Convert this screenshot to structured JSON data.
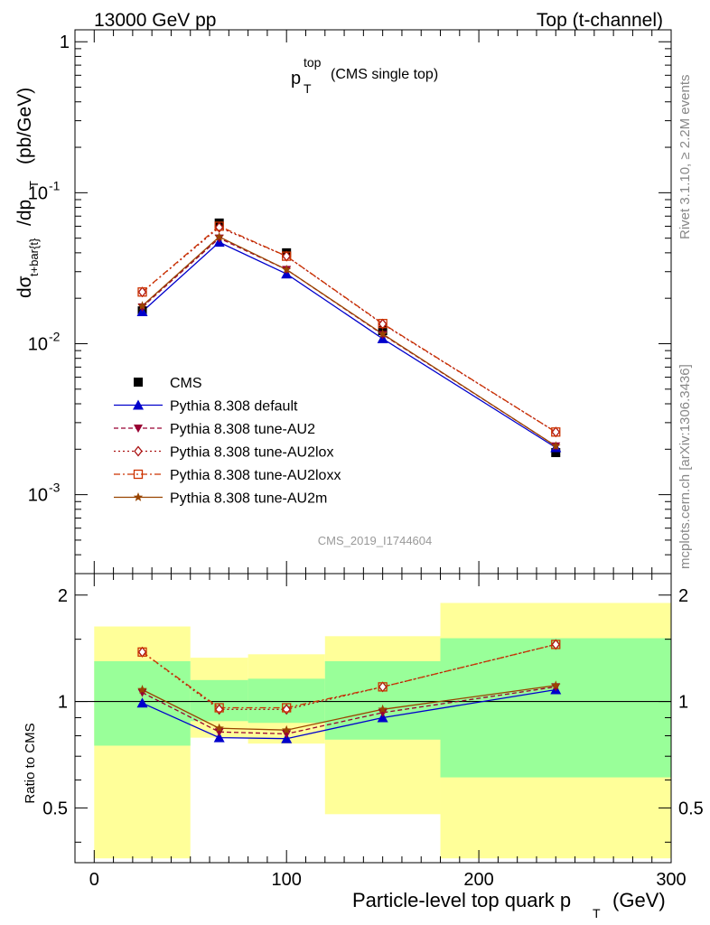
{
  "header": {
    "left": "13000 GeV pp",
    "right": "Top (t-channel)"
  },
  "plot_title": {
    "main": "p",
    "sup": "top",
    "sub": "T",
    "rest": "(CMS single top)"
  },
  "analysis_id": "CMS_2019_I1744604",
  "side_labels": {
    "rivet": "Rivet 3.1.10, ≥ 2.2M events",
    "mcplots": "mcplots.cern.ch [arXiv:1306.3436]"
  },
  "ylabel_top": {
    "d_sigma": "dσ",
    "sub": "t+bar{t}",
    "rest": "/dp",
    "sub_T": "T",
    "unit": "(pb/GeV)"
  },
  "ylabel_ratio": "Ratio to CMS",
  "xlabel": {
    "main": "Particle-level top quark p",
    "sub": "T",
    "unit": "(GeV)"
  },
  "colors": {
    "band_yellow": "#ffff99",
    "band_green": "#99ff99",
    "data": "#000000",
    "default": "#0000cc",
    "au2": "#990033",
    "au2lox": "#aa1111",
    "au2loxx": "#cc3300",
    "au2m": "#994400"
  },
  "chart_data": [
    {
      "type": "line",
      "panel": "main",
      "log_y": true,
      "xlim": [
        -10,
        300
      ],
      "ylim": [
        0.0003,
        1.2
      ],
      "y_ticks": [
        "1",
        "10^-1",
        "10^-2",
        "10^-3"
      ],
      "x": [
        25,
        65,
        100,
        150,
        240
      ],
      "series": [
        {
          "name": "CMS",
          "values": [
            0.0165,
            0.063,
            0.04,
            0.0122,
            0.0019
          ],
          "style": "square"
        },
        {
          "name": "Pythia 8.308 default",
          "values": [
            0.0163,
            0.047,
            0.029,
            0.0108,
            0.00205
          ],
          "style": "triangle"
        },
        {
          "name": "Pythia 8.308 tune-AU2",
          "values": [
            0.0175,
            0.05,
            0.031,
            0.0115,
            0.0021
          ],
          "style": "tri-down"
        },
        {
          "name": "Pythia 8.308 tune-AU2lox",
          "values": [
            0.022,
            0.059,
            0.038,
            0.0135,
            0.0026
          ],
          "style": "diamond"
        },
        {
          "name": "Pythia 8.308 tune-AU2loxx",
          "values": [
            0.022,
            0.06,
            0.038,
            0.0136,
            0.0026
          ],
          "style": "open-square"
        },
        {
          "name": "Pythia 8.308 tune-AU2m",
          "values": [
            0.0178,
            0.051,
            0.031,
            0.0116,
            0.0021
          ],
          "style": "star"
        }
      ]
    },
    {
      "type": "line",
      "panel": "ratio",
      "xlim": [
        -10,
        300
      ],
      "ylim": [
        0.35,
        2.3
      ],
      "y_ticks": [
        0.5,
        1,
        2
      ],
      "x_ticks": [
        0,
        100,
        200,
        300
      ],
      "bins": [
        {
          "x0": 0,
          "x1": 50,
          "yellow": [
            0.36,
            1.63
          ],
          "green": [
            0.75,
            1.3
          ]
        },
        {
          "x0": 50,
          "x1": 80,
          "yellow": [
            0.79,
            1.33
          ],
          "green": [
            0.88,
            1.15
          ]
        },
        {
          "x0": 80,
          "x1": 120,
          "yellow": [
            0.76,
            1.36
          ],
          "green": [
            0.87,
            1.16
          ]
        },
        {
          "x0": 120,
          "x1": 180,
          "yellow": [
            0.48,
            1.53
          ],
          "green": [
            0.78,
            1.3
          ]
        },
        {
          "x0": 180,
          "x1": 300,
          "yellow": [
            0.36,
            1.9
          ],
          "green": [
            0.61,
            1.51
          ]
        }
      ],
      "x": [
        25,
        65,
        100,
        150,
        240
      ],
      "series": [
        {
          "name": "Pythia 8.308 default",
          "values": [
            0.99,
            0.79,
            0.785,
            0.9,
            1.08
          ]
        },
        {
          "name": "Pythia 8.308 tune-AU2",
          "values": [
            1.06,
            0.82,
            0.81,
            0.93,
            1.1
          ]
        },
        {
          "name": "Pythia 8.308 tune-AU2lox",
          "values": [
            1.38,
            0.95,
            0.95,
            1.1,
            1.45
          ]
        },
        {
          "name": "Pythia 8.308 tune-AU2loxx",
          "values": [
            1.38,
            0.96,
            0.96,
            1.1,
            1.45
          ]
        },
        {
          "name": "Pythia 8.308 tune-AU2m",
          "values": [
            1.08,
            0.84,
            0.83,
            0.95,
            1.11
          ]
        }
      ]
    }
  ]
}
